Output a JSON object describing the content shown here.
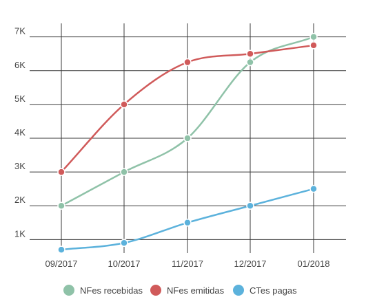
{
  "chart_data": {
    "type": "line",
    "title": "",
    "xlabel": "",
    "ylabel": "",
    "categories": [
      "09/2017",
      "10/2017",
      "11/2017",
      "12/2017",
      "01/2018"
    ],
    "y_ticks": [
      {
        "value": 1000,
        "label": "1K"
      },
      {
        "value": 2000,
        "label": "2K"
      },
      {
        "value": 3000,
        "label": "3K"
      },
      {
        "value": 4000,
        "label": "4K"
      },
      {
        "value": 5000,
        "label": "5K"
      },
      {
        "value": 6000,
        "label": "6K"
      },
      {
        "value": 7000,
        "label": "7K"
      }
    ],
    "ylim": [
      600,
      7400
    ],
    "grid": true,
    "curve": "smooth",
    "legend_position": "bottom",
    "series": [
      {
        "name": "NFes recebidas",
        "color": "#8fc2a8",
        "values": [
          2000,
          3000,
          4000,
          6250,
          7000
        ]
      },
      {
        "name": "NFes emitidas",
        "color": "#d05a5a",
        "values": [
          3000,
          5000,
          6250,
          6500,
          6750
        ]
      },
      {
        "name": "CTes pagas",
        "color": "#5cb2dc",
        "values": [
          700,
          900,
          1500,
          2000,
          2500
        ]
      }
    ]
  }
}
